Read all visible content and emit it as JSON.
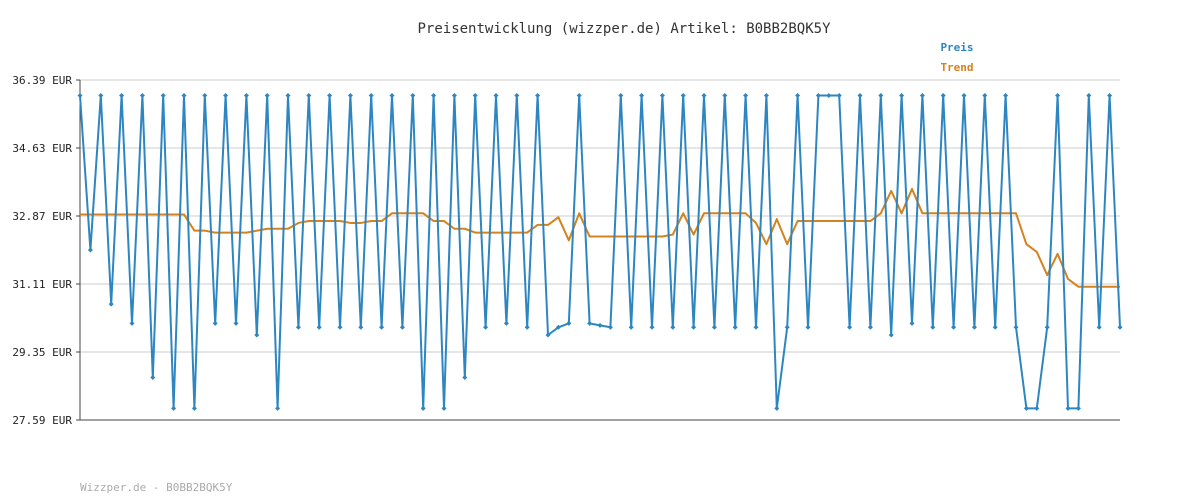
{
  "chart_data": {
    "type": "line",
    "title": "Preisentwicklung (wizzper.de) Artikel: B0BB2BQK5Y",
    "ylim": [
      27.59,
      36.39
    ],
    "yticks": [
      "36.39 EUR",
      "34.63 EUR",
      "32.87 EUR",
      "31.11 EUR",
      "29.35 EUR",
      "27.59 EUR"
    ],
    "ytick_values": [
      36.39,
      34.63,
      32.87,
      31.11,
      29.35,
      27.59
    ],
    "grid": true,
    "legend_position": "top-right",
    "series": [
      {
        "name": "Preis",
        "color": "#2e86c1",
        "values": [
          35.99,
          31.99,
          35.99,
          30.59,
          35.99,
          30.09,
          35.99,
          28.69,
          35.99,
          27.89,
          35.99,
          27.89,
          35.99,
          30.09,
          35.99,
          30.09,
          35.99,
          29.79,
          35.99,
          27.89,
          35.99,
          29.99,
          35.99,
          29.99,
          35.99,
          29.99,
          35.99,
          29.99,
          35.99,
          29.99,
          35.99,
          29.99,
          35.99,
          27.89,
          35.99,
          27.89,
          35.99,
          28.69,
          35.99,
          29.99,
          35.99,
          30.09,
          35.99,
          29.99,
          35.99,
          29.79,
          29.99,
          30.09,
          35.99,
          30.09,
          30.04,
          29.99,
          35.99,
          29.99,
          35.99,
          29.99,
          35.99,
          29.99,
          35.99,
          29.99,
          35.99,
          29.99,
          35.99,
          29.99,
          35.99,
          29.99,
          35.99,
          27.89,
          29.99,
          35.99,
          29.99,
          35.99,
          35.99,
          35.99,
          29.99,
          35.99,
          29.99,
          35.99,
          29.79,
          35.99,
          30.09,
          35.99,
          29.99,
          35.99,
          29.99,
          35.99,
          29.99,
          35.99,
          29.99,
          35.99,
          29.99,
          27.89,
          27.89,
          29.99,
          35.99,
          27.89,
          27.89,
          35.99,
          29.99,
          35.99,
          29.99
        ]
      },
      {
        "name": "Trend",
        "color": "#d4821e",
        "values": [
          32.91,
          32.91,
          32.91,
          32.91,
          32.91,
          32.91,
          32.91,
          32.91,
          32.91,
          32.91,
          32.91,
          32.49,
          32.49,
          32.44,
          32.44,
          32.44,
          32.44,
          32.49,
          32.54,
          32.54,
          32.54,
          32.69,
          32.74,
          32.74,
          32.74,
          32.74,
          32.69,
          32.69,
          32.74,
          32.74,
          32.94,
          32.94,
          32.94,
          32.94,
          32.74,
          32.74,
          32.54,
          32.54,
          32.44,
          32.44,
          32.44,
          32.44,
          32.44,
          32.44,
          32.64,
          32.64,
          32.84,
          32.24,
          32.94,
          32.34,
          32.34,
          32.34,
          32.34,
          32.34,
          32.34,
          32.34,
          32.34,
          32.39,
          32.94,
          32.39,
          32.94,
          32.94,
          32.94,
          32.94,
          32.94,
          32.69,
          32.14,
          32.79,
          32.14,
          32.74,
          32.74,
          32.74,
          32.74,
          32.74,
          32.74,
          32.74,
          32.74,
          32.94,
          33.52,
          32.94,
          33.57,
          32.94,
          32.94,
          32.94,
          32.94,
          32.94,
          32.94,
          32.94,
          32.94,
          32.94,
          32.94,
          32.14,
          31.94,
          31.34,
          31.89,
          31.24,
          31.04,
          31.04,
          31.04,
          31.04,
          31.04
        ]
      }
    ]
  },
  "footer": "Wizzper.de - B0BB2BQK5Y"
}
